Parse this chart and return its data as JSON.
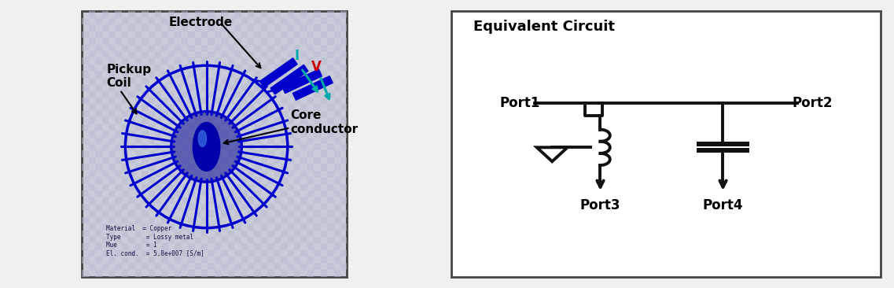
{
  "bg_color": "#f0f0f0",
  "left_panel_bg": "#c8ccd8",
  "right_panel_bg": "#ffffff",
  "left_box_color": "#444444",
  "right_box_color": "#444444",
  "title_right": "Equivalent Circuit",
  "label_electrode": "Electrode",
  "label_pickup": "Pickup\nCoil",
  "label_core": "Core\nconductor",
  "label_I": "I",
  "label_V": "V",
  "label_port1": "Port1",
  "label_port2": "Port2",
  "label_port3": "Port3",
  "label_port4": "Port4",
  "material_text": "Material  = Copper\nType       = Lossy metal\nMue        = 1\nEl. cond.  = 5.8e+007 [S/m]",
  "coil_color": "#0000cc",
  "circuit_color": "#111111",
  "I_color": "#00aaaa",
  "V_color": "#cc0000",
  "lw_circuit": 2.8
}
